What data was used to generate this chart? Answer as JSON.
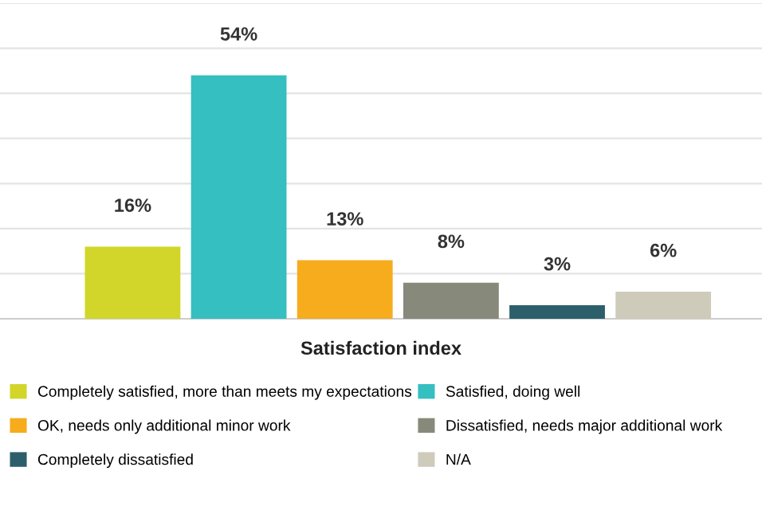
{
  "chart_data": {
    "type": "bar",
    "xlabel": "Satisfaction index",
    "categories": [
      null
    ],
    "series": [
      {
        "name": "Completely satisfied, more than meets my expectations",
        "color": "#d2d62a",
        "values": [
          16
        ],
        "value_labels": [
          "16%"
        ]
      },
      {
        "name": "Satisfied, doing well",
        "color": "#35bfc0",
        "values": [
          54
        ],
        "value_labels": [
          "54%"
        ]
      },
      {
        "name": "OK, needs only additional minor work",
        "color": "#f6ac1c",
        "values": [
          13
        ],
        "value_labels": [
          "13%"
        ]
      },
      {
        "name": "Dissatisfied, needs major additional work",
        "color": "#878a7a",
        "values": [
          8
        ],
        "value_labels": [
          "8%"
        ]
      },
      {
        "name": "Completely dissatisfied",
        "color": "#2c5f6b",
        "values": [
          3
        ],
        "value_labels": [
          "3%"
        ]
      },
      {
        "name": "N/A",
        "color": "#cfcbbb",
        "values": [
          6
        ],
        "value_labels": [
          "6%"
        ]
      }
    ],
    "ylim": [
      0,
      70
    ],
    "yticks": [
      {
        "value": 0,
        "label": null
      },
      {
        "value": 10,
        "label": null
      },
      {
        "value": 20,
        "label": null
      },
      {
        "value": 30,
        "label": null
      },
      {
        "value": 40,
        "label": null
      },
      {
        "value": 50,
        "label": null
      },
      {
        "value": 60,
        "label": null
      },
      {
        "value": 70,
        "label": null
      }
    ],
    "tick_labels": false,
    "grid": "y",
    "legend": "bottom"
  }
}
